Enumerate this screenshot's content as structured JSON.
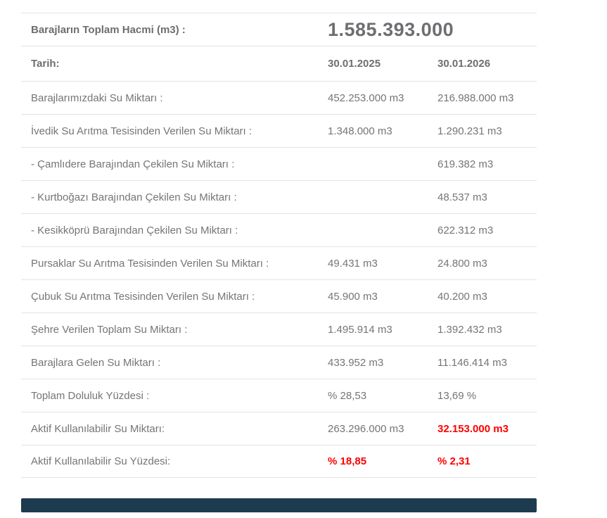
{
  "colors": {
    "text_regular": "#757575",
    "text_bold": "#6d6e71",
    "divider": "#e2e2e2",
    "alert_red": "#ff0000",
    "footer_bar": "#1d3b4f"
  },
  "header": {
    "label": "Barajların Toplam Hacmi (m3) :",
    "value": "1.585.393.000"
  },
  "date_row": {
    "label": "Tarih:",
    "col1": "30.01.2025",
    "col2": "30.01.2026"
  },
  "rows": [
    {
      "label": "Barajlarımızdaki Su Miktarı :",
      "v1": "452.253.000 m3",
      "v2": "216.988.000 m3"
    },
    {
      "label": "İvedik Su Arıtma Tesisinden Verilen Su Miktarı :",
      "v1": "1.348.000 m3",
      "v2": "1.290.231 m3"
    },
    {
      "label": "- Çamlıdere Barajından Çekilen Su Miktarı :",
      "v1": "",
      "v2": "619.382 m3"
    },
    {
      "label": "- Kurtboğazı Barajından Çekilen Su Miktarı :",
      "v1": "",
      "v2": "48.537 m3"
    },
    {
      "label": "- Kesikköprü Barajından Çekilen Su Miktarı :",
      "v1": "",
      "v2": "622.312 m3"
    },
    {
      "label": "Pursaklar Su Arıtma Tesisinden Verilen Su Miktarı :",
      "v1": "49.431 m3",
      "v2": "24.800 m3"
    },
    {
      "label": "Çubuk Su Arıtma Tesisinden Verilen Su Miktarı :",
      "v1": "45.900 m3",
      "v2": "40.200 m3"
    },
    {
      "label": "Şehre Verilen Toplam Su Miktarı :",
      "v1": "1.495.914 m3",
      "v2": "1.392.432 m3"
    },
    {
      "label": "Barajlara Gelen Su Miktarı :",
      "v1": "433.952 m3",
      "v2": "11.146.414 m3"
    },
    {
      "label": "Toplam Doluluk Yüzdesi :",
      "v1": "% 28,53",
      "v2": "13,69 %"
    },
    {
      "label": "Aktif Kullanılabilir Su Miktarı:",
      "v1": "263.296.000 m3",
      "v2": "32.153.000 m3"
    },
    {
      "label": "Aktif Kullanılabilir Su Yüzdesi:",
      "v1": "% 18,85",
      "v2": "% 2,31"
    }
  ]
}
